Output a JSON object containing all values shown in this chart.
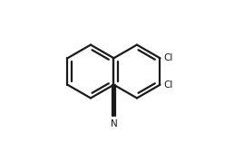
{
  "bg_color": "#ffffff",
  "line_color": "#1a1a1a",
  "line_width": 1.6,
  "text_color": "#1a1a1a",
  "cl_fontsize": 7.5,
  "n_fontsize": 7.5,
  "figsize": [
    2.58,
    1.78
  ],
  "dpi": 100,
  "xlim": [
    0,
    10
  ],
  "ylim": [
    0,
    7.5
  ]
}
